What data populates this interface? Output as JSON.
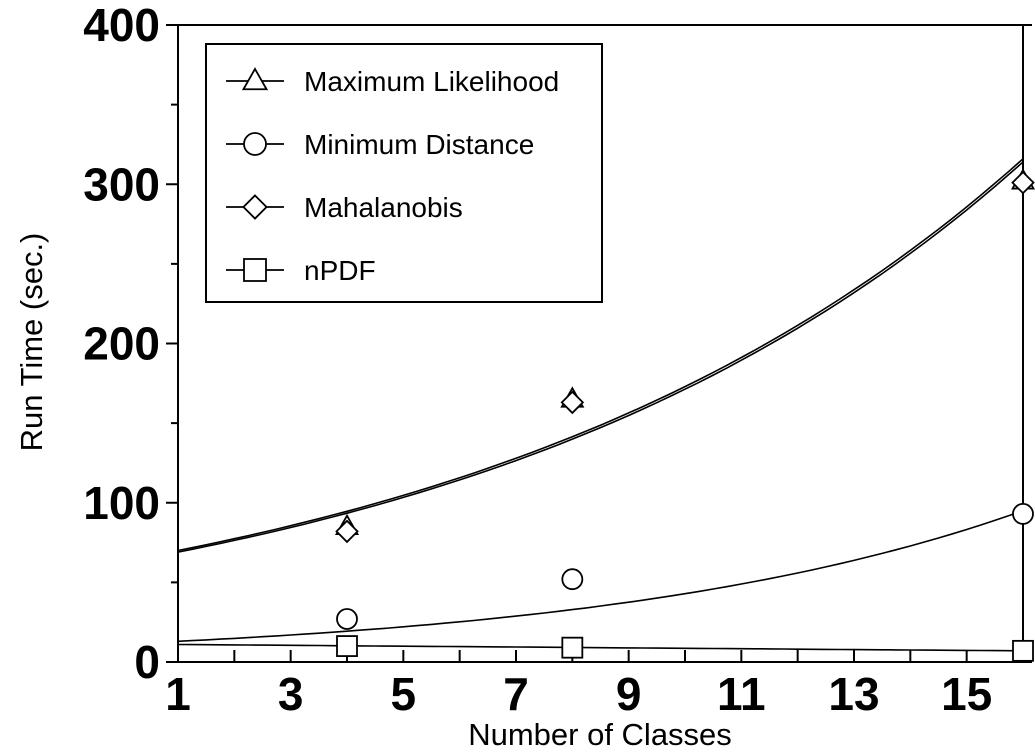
{
  "chart_data": {
    "type": "scatter",
    "title": "",
    "xlabel": "Number of Classes",
    "ylabel": "Run Time (sec.)",
    "xlim": [
      1,
      16
    ],
    "ylim": [
      0,
      400
    ],
    "x_tick_labels": [
      "1",
      "3",
      "5",
      "7",
      "9",
      "11",
      "13",
      "15"
    ],
    "y_tick_labels": [
      "0",
      "100",
      "200",
      "300",
      "400"
    ],
    "grid": false,
    "legend_position": "top-left",
    "series": [
      {
        "name": "Maximum Likelihood",
        "marker": "triangle",
        "x": [
          4,
          8,
          16
        ],
        "y": [
          85,
          165,
          302
        ],
        "trend": "exponential",
        "trend_y_at_x1": 70,
        "trend_y_at_x16": 316
      },
      {
        "name": "Minimum Distance",
        "marker": "circle",
        "x": [
          4,
          8,
          16
        ],
        "y": [
          27,
          52,
          93
        ],
        "trend": "exponential",
        "trend_y_at_x1": 13,
        "trend_y_at_x16": 95
      },
      {
        "name": "Mahalanobis",
        "marker": "diamond",
        "x": [
          4,
          8,
          16
        ],
        "y": [
          82,
          163,
          301
        ],
        "trend": "exponential",
        "trend_y_at_x1": 69,
        "trend_y_at_x16": 314
      },
      {
        "name": "nPDF",
        "marker": "square",
        "x": [
          4,
          8,
          16
        ],
        "y": [
          10,
          9,
          7
        ],
        "trend": "linear",
        "trend_y_at_x1": 11,
        "trend_y_at_x16": 7
      }
    ]
  }
}
